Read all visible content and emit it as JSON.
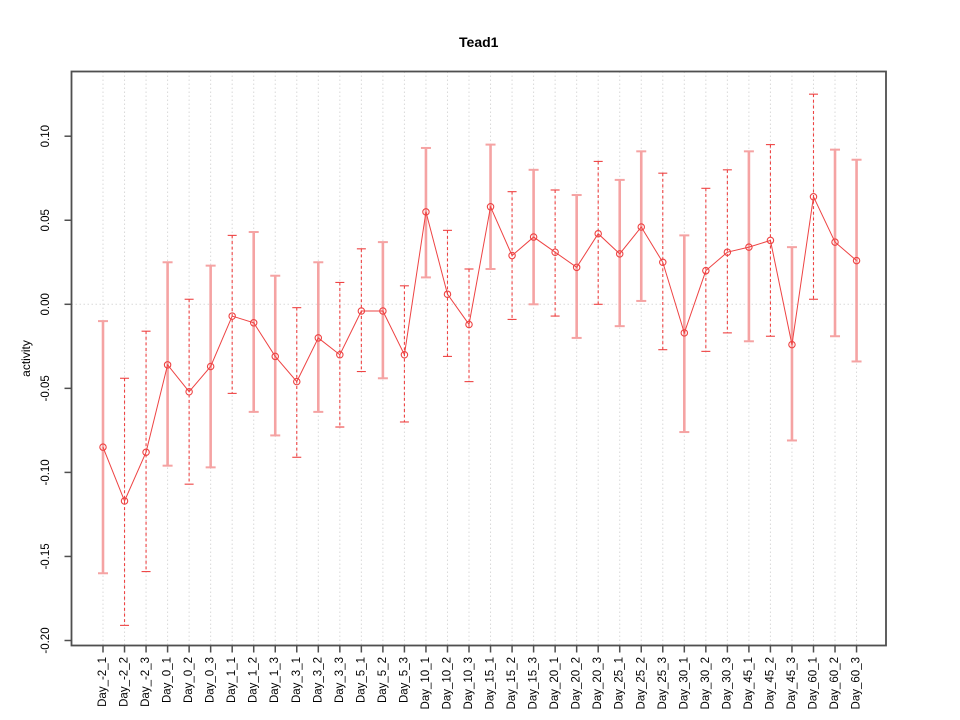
{
  "chart": {
    "title": "Tead1",
    "ylabel": "activity",
    "xlabel": ""
  },
  "chart_data": {
    "type": "line",
    "title": "Tead1",
    "xlabel": "",
    "ylabel": "activity",
    "ylim": [
      -0.203,
      0.138
    ],
    "grid": "vertical-dotted-at-each-category-plus-zero-line",
    "legend": "none",
    "point_marker": "open-circle",
    "ytick_labels": [
      "0.10",
      "0.05",
      "0.00",
      "-0.05",
      "-0.10",
      "-0.15",
      "-0.20"
    ],
    "yticks": [
      0.1,
      0.05,
      0.0,
      -0.05,
      -0.1,
      -0.15,
      -0.2
    ],
    "categories": [
      "Day_-2_1",
      "Day_-2_2",
      "Day_-2_3",
      "Day_0_1",
      "Day_0_2",
      "Day_0_3",
      "Day_1_1",
      "Day_1_2",
      "Day_1_3",
      "Day_3_1",
      "Day_3_2",
      "Day_3_3",
      "Day_5_1",
      "Day_5_2",
      "Day_5_3",
      "Day_10_1",
      "Day_10_2",
      "Day_10_3",
      "Day_15_1",
      "Day_15_2",
      "Day_15_3",
      "Day_20_1",
      "Day_20_2",
      "Day_20_3",
      "Day_25_1",
      "Day_25_2",
      "Day_25_3",
      "Day_30_1",
      "Day_30_2",
      "Day_30_3",
      "Day_45_1",
      "Day_45_2",
      "Day_45_3",
      "Day_60_1",
      "Day_60_2",
      "Day_60_3"
    ],
    "series": [
      {
        "name": "activity",
        "values": [
          -0.085,
          -0.117,
          -0.088,
          -0.036,
          -0.052,
          -0.037,
          -0.007,
          -0.011,
          -0.031,
          -0.046,
          -0.02,
          -0.03,
          -0.004,
          -0.004,
          -0.03,
          0.055,
          0.006,
          -0.012,
          0.058,
          0.029,
          0.04,
          0.031,
          0.022,
          0.042,
          0.03,
          0.046,
          0.025,
          -0.017,
          0.02,
          0.031,
          0.034,
          0.038,
          -0.024,
          0.064,
          0.037,
          0.026
        ],
        "error_low": [
          -0.16,
          -0.191,
          -0.159,
          -0.096,
          -0.107,
          -0.097,
          -0.053,
          -0.064,
          -0.078,
          -0.091,
          -0.064,
          -0.073,
          -0.04,
          -0.044,
          -0.07,
          0.016,
          -0.031,
          -0.046,
          0.021,
          -0.009,
          0.0,
          -0.007,
          -0.02,
          0.0,
          -0.013,
          0.002,
          -0.027,
          -0.076,
          -0.028,
          -0.017,
          -0.022,
          -0.019,
          -0.081,
          0.003,
          -0.019,
          -0.034
        ],
        "error_high": [
          -0.01,
          -0.044,
          -0.016,
          0.025,
          0.003,
          0.023,
          0.041,
          0.043,
          0.017,
          -0.002,
          0.025,
          0.013,
          0.033,
          0.037,
          0.011,
          0.093,
          0.044,
          0.021,
          0.095,
          0.067,
          0.08,
          0.068,
          0.065,
          0.085,
          0.074,
          0.091,
          0.078,
          0.041,
          0.069,
          0.08,
          0.091,
          0.095,
          0.034,
          0.125,
          0.092,
          0.086
        ],
        "error_bar_styles": [
          "solid",
          "dashed",
          "dashed",
          "solid",
          "dashed",
          "solid",
          "dashed",
          "solid",
          "solid",
          "dashed",
          "solid",
          "dashed",
          "dashed",
          "solid",
          "dashed",
          "solid",
          "dashed",
          "dashed",
          "solid",
          "dashed",
          "solid",
          "dashed",
          "solid",
          "dashed",
          "solid",
          "solid",
          "dashed",
          "solid",
          "dashed",
          "dashed",
          "solid",
          "dashed",
          "solid",
          "dashed",
          "solid",
          "solid"
        ]
      }
    ],
    "colors": {
      "point_and_line_red": "#ee4343",
      "error_bar_dashed_red": "#ee4343",
      "error_bar_solid_pale": "#f5a3a3",
      "gridline_gray": "#d9d9d9",
      "axis_box_gray": "#4f4f4f",
      "text_black": "#000000",
      "background": "#ffffff"
    }
  }
}
